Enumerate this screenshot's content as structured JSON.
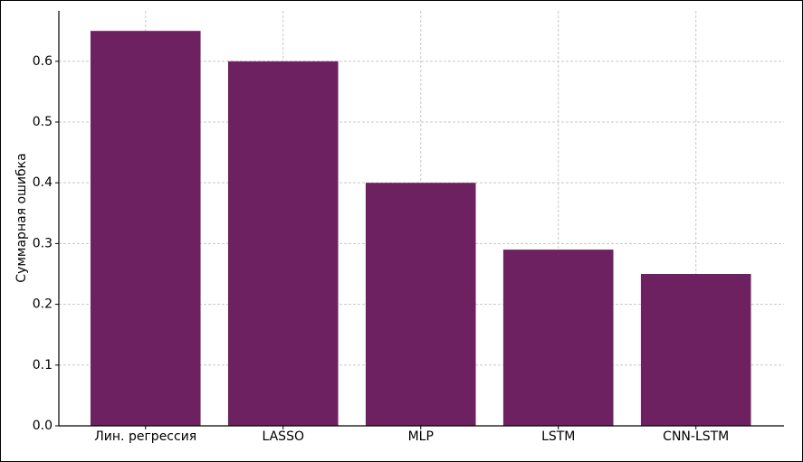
{
  "chart_data": {
    "type": "bar",
    "ylabel": "Суммарная ошибка",
    "categories": [
      "Лин. регрессия",
      "LASSO",
      "MLP",
      "LSTM",
      "CNN-LSTM"
    ],
    "values": [
      0.65,
      0.6,
      0.4,
      0.29,
      0.25
    ],
    "color": "#6e2160",
    "ylim": [
      0,
      0.683
    ],
    "yticks": [
      {
        "value": 0,
        "label": "0.0"
      },
      0.1,
      0.2,
      0.3,
      0.4,
      0.5,
      0.6
    ],
    "grid": true
  }
}
